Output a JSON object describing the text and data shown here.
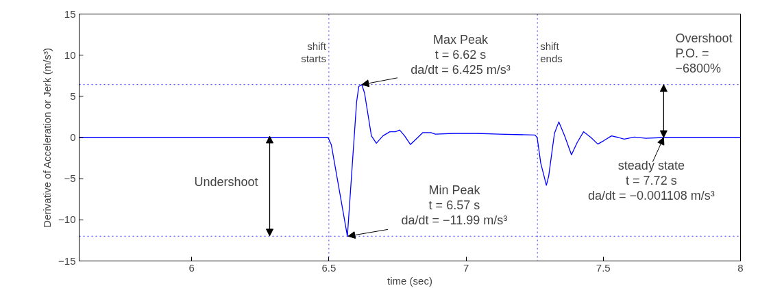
{
  "chart_data": {
    "type": "line",
    "xlabel": "time (sec)",
    "ylabel": "Derivative of Acceleration or Jerk (m/s³)",
    "xlim": [
      5.59,
      8
    ],
    "ylim": [
      -15,
      15
    ],
    "xticks": [
      6,
      6.5,
      7,
      7.5,
      8
    ],
    "yticks": [
      -15,
      -10,
      -5,
      0,
      5,
      10,
      15
    ],
    "grid": false,
    "line_style": "solid",
    "marker": "none",
    "series": [
      {
        "color": "#0000ff",
        "x": [
          5.59,
          6.497,
          6.509,
          6.5675,
          6.601,
          6.609,
          6.62,
          6.63,
          6.655,
          6.673,
          6.697,
          6.722,
          6.742,
          6.758,
          6.776,
          6.797,
          6.8175,
          6.8425,
          6.872,
          6.888,
          6.955,
          7.038,
          7.122,
          7.251,
          7.259,
          7.2675,
          7.272,
          7.2925,
          7.301,
          7.322,
          7.338,
          7.359,
          7.384,
          7.405,
          7.428,
          7.455,
          7.48,
          7.501,
          7.53,
          7.555,
          7.576,
          7.613,
          7.655,
          7.72,
          8
        ],
        "values": [
          0,
          0,
          -0.9,
          -11.99,
          4.3,
          6.2,
          6.425,
          5.4,
          0.2,
          -0.7,
          0.2,
          0.7,
          0.7,
          0.9,
          0.2,
          -0.85,
          -0.2,
          0.6,
          0.6,
          0.4,
          0.5,
          0.5,
          0.4,
          0.3,
          0,
          -2.0,
          -3.1,
          -5.8,
          -4.7,
          0.5,
          1.9,
          0.2,
          -2.1,
          -0.6,
          0.7,
          0,
          -0.8,
          -0.4,
          0.2,
          0,
          -0.2,
          0.05,
          -0.1,
          0,
          0
        ]
      }
    ],
    "ref_lines": [
      {
        "axis": "x",
        "value": 6.5,
        "label": "shift\nstarts",
        "color": "#0000ff",
        "line_style": "dotted"
      },
      {
        "axis": "x",
        "value": 7.26,
        "label": "shift\nends",
        "color": "#0000ff",
        "line_style": "dotted"
      },
      {
        "axis": "y",
        "value": 6.425,
        "label": null,
        "color": "#0000ff",
        "line_style": "dotted"
      },
      {
        "axis": "y",
        "value": -11.99,
        "label": null,
        "color": "#0000ff",
        "line_style": "dotted"
      }
    ],
    "annotations": [
      {
        "text": "Max Peak\nt = 6.62 s\nda/dt = 6.425 m/s³",
        "x": 6.62,
        "y": 6.425
      },
      {
        "text": "Min Peak\nt = 6.57 s\nda/dt = −11.99 m/s³",
        "x": 6.57,
        "y": -11.99
      },
      {
        "text": "steady state\nt = 7.72 s\nda/dt = −0.001108 m/s³",
        "x": 7.72,
        "y": 0
      },
      "Undershoot",
      {
        "text": "Overshoot\nP.O. =\n−6800%",
        "x": 7.72,
        "y": 6.425
      }
    ]
  }
}
